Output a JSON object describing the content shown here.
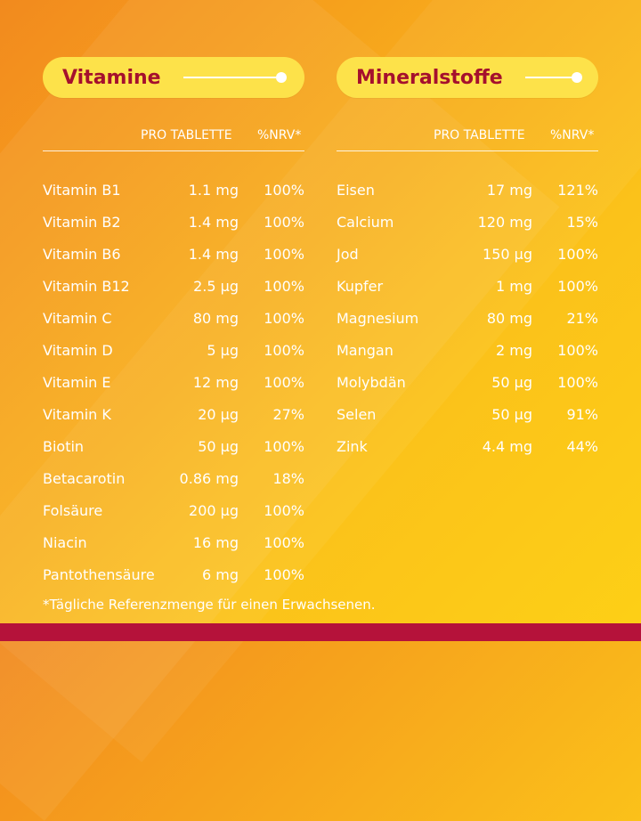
{
  "vitamins": {
    "title": "Vitamine",
    "col_amount": "PRO TABLETTE",
    "col_nrv": "%NRV*",
    "rows": [
      {
        "name": "Vitamin B1",
        "amount": "1.1 mg",
        "nrv": "100%"
      },
      {
        "name": "Vitamin B2",
        "amount": "1.4 mg",
        "nrv": "100%"
      },
      {
        "name": "Vitamin B6",
        "amount": "1.4 mg",
        "nrv": "100%"
      },
      {
        "name": "Vitamin B12",
        "amount": "2.5 µg",
        "nrv": "100%"
      },
      {
        "name": "Vitamin C",
        "amount": "80 mg",
        "nrv": "100%"
      },
      {
        "name": "Vitamin D",
        "amount": "5 µg",
        "nrv": "100%"
      },
      {
        "name": "Vitamin E",
        "amount": "12 mg",
        "nrv": "100%"
      },
      {
        "name": "Vitamin K",
        "amount": "20 µg",
        "nrv": "27%"
      },
      {
        "name": "Biotin",
        "amount": "50 µg",
        "nrv": "100%"
      },
      {
        "name": "Betacarotin",
        "amount": "0.86 mg",
        "nrv": "18%"
      },
      {
        "name": "Folsäure",
        "amount": "200 µg",
        "nrv": "100%"
      },
      {
        "name": "Niacin",
        "amount": "16 mg",
        "nrv": "100%"
      },
      {
        "name": "Pantothensäure",
        "amount": "6 mg",
        "nrv": "100%"
      }
    ]
  },
  "minerals": {
    "title": "Mineralstoffe",
    "col_amount": "PRO TABLETTE",
    "col_nrv": "%NRV*",
    "rows": [
      {
        "name": "Eisen",
        "amount": "17 mg",
        "nrv": "121%"
      },
      {
        "name": "Calcium",
        "amount": "120 mg",
        "nrv": "15%"
      },
      {
        "name": "Jod",
        "amount": "150 µg",
        "nrv": "100%"
      },
      {
        "name": "Kupfer",
        "amount": "1 mg",
        "nrv": "100%"
      },
      {
        "name": "Magnesium",
        "amount": "80 mg",
        "nrv": "21%"
      },
      {
        "name": "Mangan",
        "amount": "2 mg",
        "nrv": "100%"
      },
      {
        "name": "Molybdän",
        "amount": "50 µg",
        "nrv": "100%"
      },
      {
        "name": "Selen",
        "amount": "50 µg",
        "nrv": "91%"
      },
      {
        "name": "Zink",
        "amount": "4.4 mg",
        "nrv": "44%"
      }
    ]
  },
  "footnote": "*Tägliche Referenzmenge für einen Erwachsenen.",
  "colors": {
    "title_red": "#a5102d",
    "pill_yellow": "#fde24a",
    "bottom_band": "#b5123a"
  }
}
